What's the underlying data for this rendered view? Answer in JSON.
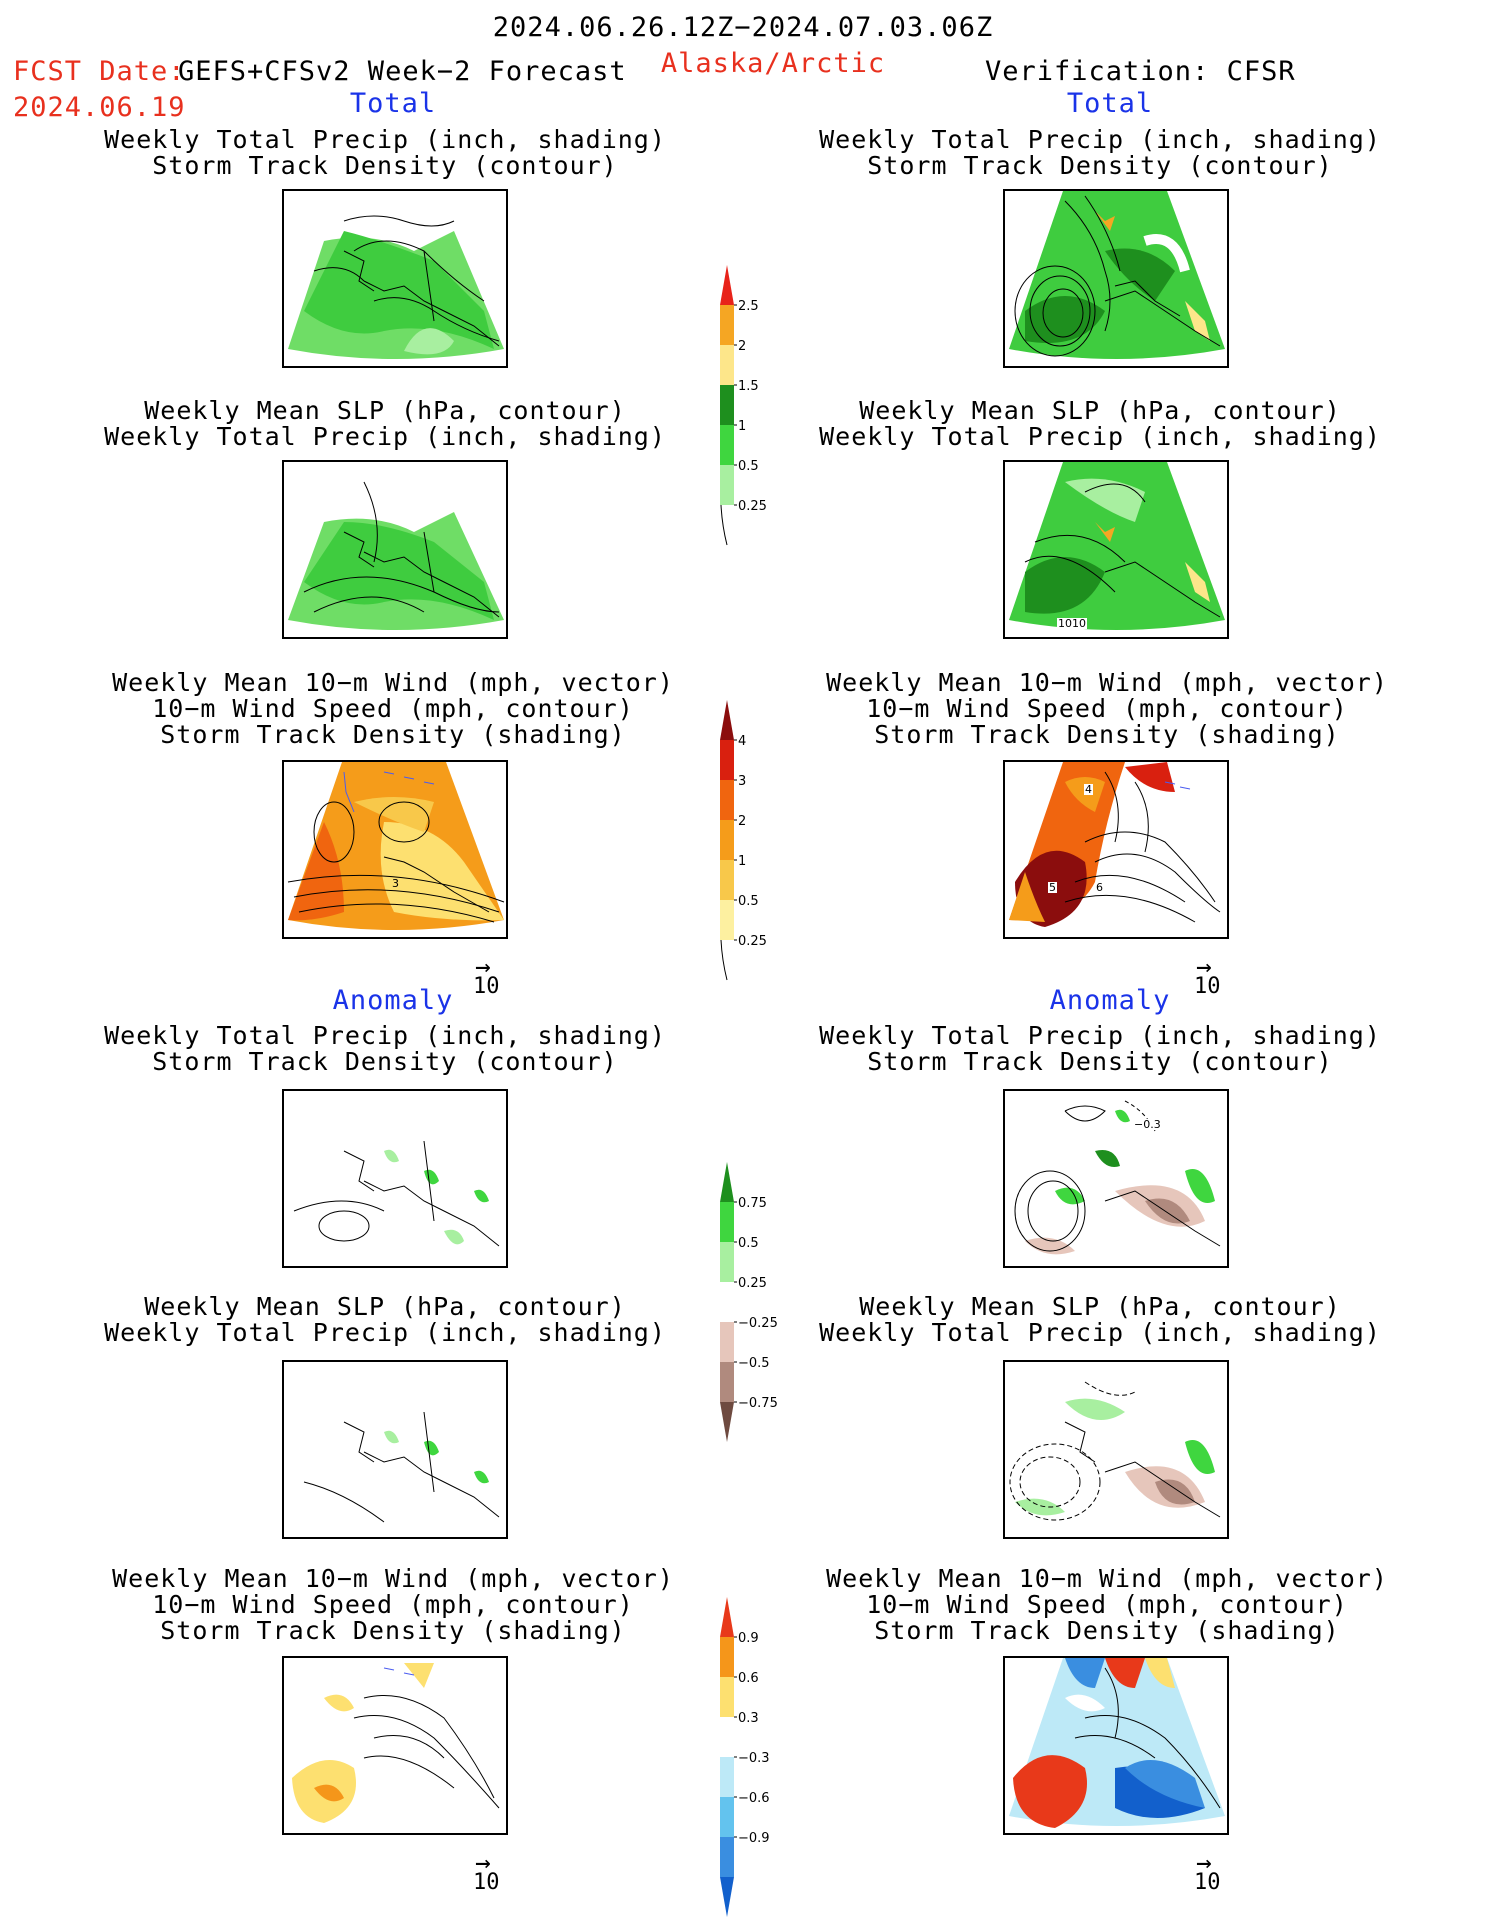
{
  "header": {
    "period": "2024.06.26.12Z−2024.07.03.06Z",
    "fcst_label": "FCST Date:",
    "model": "GEFS+CFSv2 Week−2 Forecast",
    "fcst_date": "2024.06.19",
    "region": "Alaska/Arctic",
    "verification": "Verification: CFSR"
  },
  "sections": {
    "total": "Total",
    "anomaly": "Anomaly"
  },
  "panel_titles": {
    "precip_track": [
      "Weekly Total Precip (inch, shading)",
      "Storm Track Density (contour)"
    ],
    "slp_precip": [
      "Weekly Mean SLP (hPa, contour)",
      "Weekly Total Precip (inch, shading)"
    ],
    "wind": [
      "Weekly Mean 10−m Wind (mph, vector)",
      "10−m Wind Speed (mph, contour)",
      "Storm Track Density (shading)"
    ]
  },
  "map_labels": {
    "slp_1010": "1010",
    "track_4": "4",
    "track_5": "5",
    "track_6": "6",
    "anom_track": "−0.3"
  },
  "vector_reference": "10",
  "colorbars": {
    "precip_total": {
      "labels": [
        "2.5",
        "2",
        "1.5",
        "1",
        "0.5",
        "0.25"
      ],
      "colors": [
        "#e8231a",
        "#f5a623",
        "#fde68a",
        "#1e8f1e",
        "#3fd63f",
        "#a8efa0"
      ]
    },
    "track_total": {
      "labels": [
        "4",
        "3",
        "2",
        "1",
        "0.5",
        "0.25"
      ],
      "colors": [
        "#8b0d0d",
        "#d9200f",
        "#f0650f",
        "#f59c1a",
        "#f8c84a",
        "#fdf0a0"
      ]
    },
    "precip_anom": {
      "labels": [
        "0.75",
        "0.5",
        "0.25",
        "−0.25",
        "−0.5",
        "−0.75"
      ],
      "colors": [
        "#1e8f1e",
        "#3fd63f",
        "#a8efa0",
        "#ffffff",
        "#e6c6bb",
        "#b08a7e",
        "#6e4a40"
      ]
    },
    "track_anom": {
      "labels": [
        "0.9",
        "0.6",
        "0.3",
        "−0.3",
        "−0.6",
        "−0.9"
      ],
      "colors": [
        "#e8391a",
        "#f5961a",
        "#fde070",
        "#ffffff",
        "#bde9f7",
        "#63c3ee",
        "#3a8ee0",
        "#1260cc"
      ]
    }
  }
}
